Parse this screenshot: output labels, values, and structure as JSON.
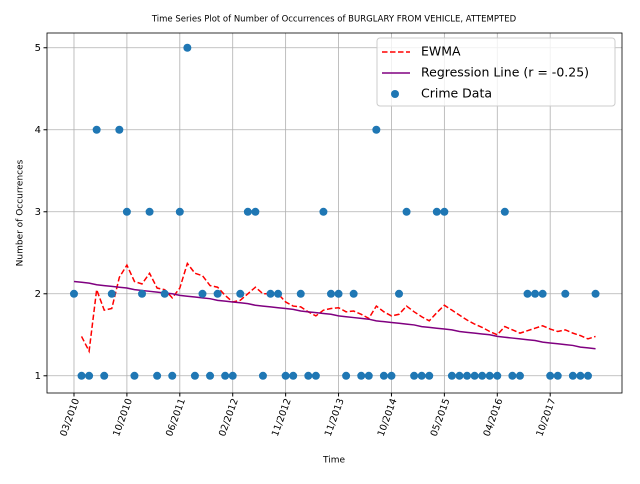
{
  "chart_data": {
    "type": "line",
    "title": "Time Series Plot of Number of Occurrences of BURGLARY FROM VEHICLE, ATTEMPTED",
    "x_label": "Time",
    "y_label": "Number of Occurrences",
    "categories": [
      "03/2010",
      null,
      null,
      null,
      null,
      null,
      null,
      "10/2010",
      null,
      null,
      null,
      null,
      null,
      null,
      "06/2011",
      null,
      null,
      null,
      null,
      null,
      null,
      "02/2012",
      null,
      null,
      null,
      null,
      null,
      null,
      "11/2012",
      null,
      null,
      null,
      null,
      null,
      null,
      "11/2013",
      null,
      null,
      null,
      null,
      null,
      null,
      "10/2014",
      null,
      null,
      null,
      null,
      null,
      null,
      "05/2015",
      null,
      null,
      null,
      null,
      null,
      null,
      "04/2016",
      null,
      null,
      null,
      null,
      null,
      null,
      "10/2017",
      null,
      null,
      null,
      null,
      null,
      null
    ],
    "series": [
      {
        "name": "EWMA",
        "color": "#ff0000",
        "style": "dashed",
        "values": [
          null,
          1.48,
          1.3,
          2.05,
          1.8,
          1.82,
          2.2,
          2.35,
          2.15,
          2.12,
          2.25,
          2.07,
          2.05,
          1.95,
          2.07,
          2.37,
          2.25,
          2.22,
          2.1,
          2.08,
          1.98,
          1.9,
          1.92,
          2.0,
          2.08,
          2.0,
          2.0,
          2.0,
          1.9,
          1.85,
          1.84,
          1.78,
          1.73,
          1.8,
          1.82,
          1.83,
          1.78,
          1.79,
          1.75,
          1.7,
          1.85,
          1.78,
          1.73,
          1.75,
          1.85,
          1.78,
          1.72,
          1.67,
          1.77,
          1.86,
          1.8,
          1.74,
          1.68,
          1.63,
          1.59,
          1.54,
          1.5,
          1.6,
          1.56,
          1.52,
          1.55,
          1.58,
          1.61,
          1.57,
          1.54,
          1.56,
          1.52,
          1.49,
          1.45,
          1.48
        ]
      },
      {
        "name": "Regression Line (r = -0.25)",
        "color": "#800080",
        "style": "solid",
        "values": [
          2.15,
          2.14,
          2.13,
          2.11,
          2.1,
          2.09,
          2.08,
          2.07,
          2.05,
          2.04,
          2.03,
          2.02,
          2.01,
          2.0,
          1.98,
          1.97,
          1.96,
          1.95,
          1.94,
          1.92,
          1.91,
          1.9,
          1.89,
          1.88,
          1.86,
          1.85,
          1.84,
          1.83,
          1.82,
          1.81,
          1.79,
          1.78,
          1.77,
          1.76,
          1.75,
          1.73,
          1.72,
          1.71,
          1.7,
          1.69,
          1.67,
          1.66,
          1.65,
          1.64,
          1.63,
          1.62,
          1.6,
          1.59,
          1.58,
          1.57,
          1.56,
          1.54,
          1.53,
          1.52,
          1.51,
          1.5,
          1.48,
          1.47,
          1.46,
          1.45,
          1.44,
          1.43,
          1.41,
          1.4,
          1.39,
          1.38,
          1.37,
          1.35,
          1.34,
          1.33
        ]
      },
      {
        "name": "Crime Data",
        "color": "#1f77b4",
        "style": "markers",
        "values": [
          2,
          1,
          1,
          4,
          1,
          2,
          4,
          3,
          1,
          2,
          3,
          1,
          2,
          1,
          3,
          5,
          1,
          2,
          1,
          2,
          1,
          1,
          2,
          3,
          3,
          1,
          2,
          2,
          1,
          1,
          2,
          1,
          1,
          3,
          2,
          2,
          1,
          2,
          1,
          1,
          4,
          1,
          1,
          2,
          3,
          1,
          1,
          1,
          3,
          3,
          1,
          1,
          1,
          1,
          1,
          1,
          1,
          3,
          1,
          1,
          2,
          2,
          2,
          1,
          1,
          2,
          1,
          1,
          1,
          2
        ]
      }
    ],
    "ylim": [
      0.79,
      5.18
    ],
    "yticks": [
      1,
      2,
      3,
      4,
      5
    ],
    "xlim": [
      -3.57,
      72.5
    ],
    "grid": true,
    "legend": "upper right"
  }
}
